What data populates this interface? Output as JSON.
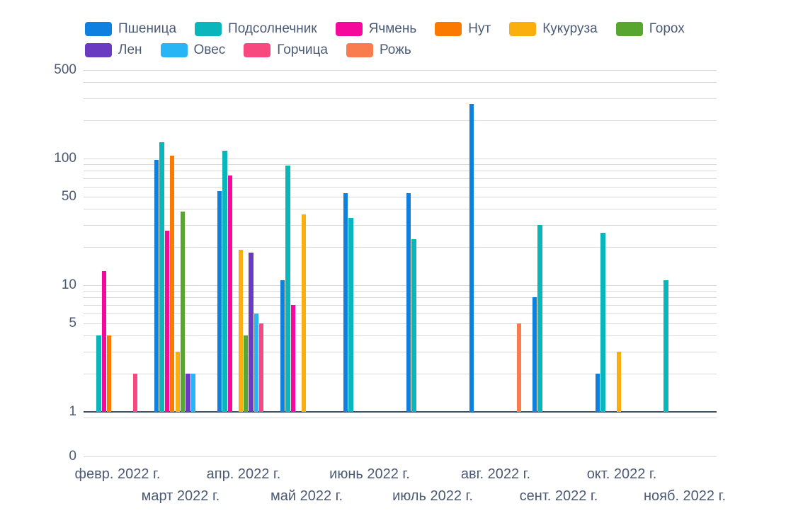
{
  "chart_data": {
    "type": "bar",
    "title": "",
    "xlabel": "",
    "ylabel": "",
    "y_scale": "log",
    "ylim": [
      1,
      500
    ],
    "grid": true,
    "legend_position": "top-left",
    "legend_rows": [
      6,
      4
    ],
    "y_tick_labels": [
      "500",
      "100",
      "50",
      "10",
      "5",
      "1"
    ],
    "y_zero_label": "0",
    "y_labeled_ticks": [
      500,
      100,
      50,
      10,
      5,
      1
    ],
    "y_minor_ticks": [
      0.9,
      2,
      3,
      4,
      6,
      7,
      8,
      9,
      20,
      30,
      40,
      60,
      70,
      80,
      90,
      200,
      300,
      400
    ],
    "categories": [
      "февр. 2022 г.",
      "март 2022 г.",
      "апр. 2022 г.",
      "май 2022 г.",
      "июнь 2022 г.",
      "июль 2022 г.",
      "авг. 2022 г.",
      "сент. 2022 г.",
      "окт. 2022 г.",
      "нояб. 2022 г."
    ],
    "series": [
      {
        "name": "Пшеница",
        "color": "#0d80e0",
        "values": [
          null,
          97,
          55,
          11,
          53,
          53,
          270,
          8,
          2,
          null
        ]
      },
      {
        "name": "Подсолнечник",
        "color": "#0ab6bc",
        "values": [
          4,
          135,
          115,
          88,
          34,
          23,
          null,
          30,
          26,
          11
        ]
      },
      {
        "name": "Ячмень",
        "color": "#f5089c",
        "values": [
          13,
          27,
          73,
          7,
          null,
          null,
          null,
          null,
          null,
          null
        ]
      },
      {
        "name": "Нут",
        "color": "#fa7a00",
        "values": [
          4,
          105,
          null,
          null,
          null,
          null,
          null,
          null,
          null,
          null
        ]
      },
      {
        "name": "Кукуруза",
        "color": "#fbaf0f",
        "values": [
          null,
          3,
          19,
          36,
          null,
          null,
          null,
          null,
          3,
          null
        ]
      },
      {
        "name": "Горох",
        "color": "#58a52f",
        "values": [
          null,
          38,
          4,
          null,
          null,
          null,
          null,
          null,
          null,
          null
        ]
      },
      {
        "name": "Лен",
        "color": "#6a3ac1",
        "values": [
          null,
          2,
          18,
          null,
          null,
          null,
          null,
          null,
          null,
          null
        ]
      },
      {
        "name": "Овес",
        "color": "#27b5f5",
        "values": [
          null,
          2,
          6,
          null,
          null,
          null,
          null,
          null,
          null,
          null
        ]
      },
      {
        "name": "Горчица",
        "color": "#f7497f",
        "values": [
          2,
          null,
          5,
          null,
          null,
          null,
          null,
          null,
          null,
          null
        ]
      },
      {
        "name": "Рожь",
        "color": "#f97c4f",
        "values": [
          null,
          null,
          null,
          null,
          null,
          null,
          5,
          null,
          null,
          null
        ]
      }
    ]
  }
}
